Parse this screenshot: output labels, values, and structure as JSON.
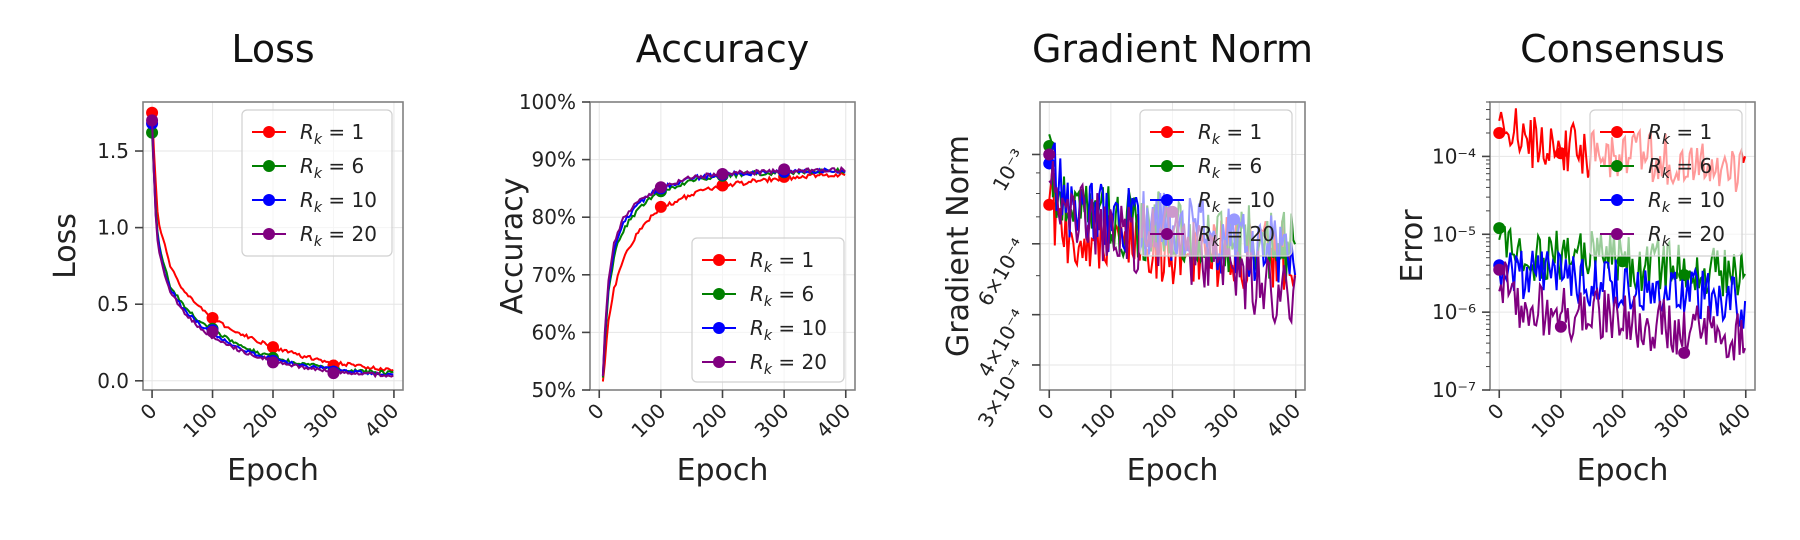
{
  "colors": {
    "r1": "#ff0000",
    "r6": "#008000",
    "r10": "#0000ff",
    "r20": "#800080"
  },
  "chart_data": [
    {
      "type": "line",
      "title": "Loss",
      "xlabel": "Epoch",
      "ylabel": "Loss",
      "xlim": [
        -15,
        415
      ],
      "ylim": [
        -0.06,
        1.82
      ],
      "xticks": [
        0,
        100,
        200,
        300,
        400
      ],
      "yticks": [
        0.0,
        0.5,
        1.0,
        1.5
      ],
      "ytick_labels": [
        "0.0",
        "0.5",
        "1.0",
        "1.5"
      ],
      "grid": true,
      "legend": "top-right",
      "series": [
        {
          "name": "R_k = 1",
          "color": "#ff0000",
          "x": [
            0,
            5,
            10,
            20,
            30,
            50,
            75,
            100,
            150,
            200,
            250,
            300,
            350,
            400
          ],
          "values": [
            1.75,
            1.35,
            1.05,
            0.9,
            0.75,
            0.6,
            0.5,
            0.4,
            0.3,
            0.22,
            0.16,
            0.12,
            0.09,
            0.07
          ],
          "marker_x": [
            0,
            100,
            200,
            300
          ],
          "marker_y": [
            1.75,
            0.41,
            0.22,
            0.1
          ]
        },
        {
          "name": "R_k = 6",
          "color": "#008000",
          "x": [
            0,
            5,
            10,
            20,
            30,
            50,
            75,
            100,
            150,
            200,
            250,
            300,
            350,
            400
          ],
          "values": [
            1.62,
            1.2,
            0.92,
            0.75,
            0.62,
            0.5,
            0.4,
            0.33,
            0.22,
            0.15,
            0.11,
            0.08,
            0.06,
            0.05
          ],
          "marker_x": [
            0,
            100,
            200,
            300
          ],
          "marker_y": [
            1.62,
            0.34,
            0.15,
            0.06
          ]
        },
        {
          "name": "R_k = 10",
          "color": "#0000ff",
          "x": [
            0,
            5,
            10,
            20,
            30,
            50,
            75,
            100,
            150,
            200,
            250,
            300,
            350,
            400
          ],
          "values": [
            1.68,
            1.15,
            0.9,
            0.72,
            0.6,
            0.48,
            0.38,
            0.3,
            0.2,
            0.14,
            0.1,
            0.07,
            0.05,
            0.04
          ],
          "marker_x": [
            0,
            100,
            200,
            300
          ],
          "marker_y": [
            1.68,
            0.33,
            0.13,
            0.06
          ]
        },
        {
          "name": "R_k = 20",
          "color": "#800080",
          "x": [
            0,
            5,
            10,
            20,
            30,
            50,
            75,
            100,
            150,
            200,
            250,
            300,
            350,
            400
          ],
          "values": [
            1.7,
            1.12,
            0.88,
            0.7,
            0.58,
            0.46,
            0.36,
            0.28,
            0.19,
            0.13,
            0.09,
            0.06,
            0.045,
            0.035
          ],
          "marker_x": [
            0,
            100,
            200,
            300
          ],
          "marker_y": [
            1.7,
            0.32,
            0.12,
            0.05
          ]
        }
      ]
    },
    {
      "type": "line",
      "title": "Accuracy",
      "xlabel": "Epoch",
      "ylabel": "Accuracy",
      "xlim": [
        -15,
        415
      ],
      "ylim": [
        0.5,
        1.0
      ],
      "xticks": [
        0,
        100,
        200,
        300,
        400
      ],
      "yticks": [
        0.5,
        0.6,
        0.7,
        0.8,
        0.9,
        1.0
      ],
      "ytick_labels": [
        "50%",
        "60%",
        "70%",
        "80%",
        "90%",
        "100%"
      ],
      "grid": true,
      "legend": "bottom-right",
      "series": [
        {
          "name": "R_k = 1",
          "color": "#ff0000",
          "x": [
            5,
            10,
            15,
            25,
            40,
            60,
            80,
            100,
            150,
            200,
            250,
            300,
            350,
            400
          ],
          "values": [
            0.5,
            0.56,
            0.62,
            0.68,
            0.73,
            0.77,
            0.795,
            0.815,
            0.84,
            0.855,
            0.862,
            0.868,
            0.872,
            0.875
          ],
          "marker_x": [
            100,
            200,
            300
          ],
          "marker_y": [
            0.818,
            0.855,
            0.87
          ]
        },
        {
          "name": "R_k = 6",
          "color": "#008000",
          "x": [
            5,
            10,
            15,
            25,
            40,
            60,
            80,
            100,
            150,
            200,
            250,
            300,
            350,
            400
          ],
          "values": [
            0.5,
            0.6,
            0.67,
            0.74,
            0.78,
            0.81,
            0.83,
            0.845,
            0.865,
            0.872,
            0.876,
            0.878,
            0.88,
            0.88
          ],
          "marker_x": [
            100,
            200,
            300
          ],
          "marker_y": [
            0.845,
            0.872,
            0.878
          ]
        },
        {
          "name": "R_k = 10",
          "color": "#0000ff",
          "x": [
            5,
            10,
            15,
            25,
            40,
            60,
            80,
            100,
            150,
            200,
            250,
            300,
            350,
            400
          ],
          "values": [
            0.5,
            0.61,
            0.68,
            0.75,
            0.79,
            0.82,
            0.838,
            0.85,
            0.868,
            0.874,
            0.877,
            0.879,
            0.88,
            0.881
          ],
          "marker_x": [
            100,
            200,
            300
          ],
          "marker_y": [
            0.85,
            0.874,
            0.879
          ]
        },
        {
          "name": "R_k = 20",
          "color": "#800080",
          "x": [
            5,
            10,
            15,
            25,
            40,
            60,
            80,
            100,
            150,
            200,
            250,
            300,
            350,
            400
          ],
          "values": [
            0.5,
            0.62,
            0.69,
            0.76,
            0.8,
            0.825,
            0.84,
            0.852,
            0.869,
            0.875,
            0.878,
            0.88,
            0.881,
            0.882
          ],
          "marker_x": [
            100,
            200,
            300
          ],
          "marker_y": [
            0.852,
            0.875,
            0.883
          ]
        }
      ]
    },
    {
      "type": "line",
      "title": "Gradient Norm",
      "xlabel": "Epoch",
      "ylabel": "Gradient Norm",
      "yscale": "log",
      "xlim": [
        -15,
        415
      ],
      "ylim": [
        0.00026,
        0.00135
      ],
      "xticks": [
        0,
        100,
        200,
        300,
        400
      ],
      "yticks": [
        0.0003,
        0.0004,
        0.0006,
        0.001
      ],
      "ytick_labels": [
        "3×10⁻⁴",
        "4×10⁻⁴",
        "6×10⁻⁴",
        "10⁻³"
      ],
      "grid": true,
      "legend": "top-right",
      "series": [
        {
          "name": "R_k = 1",
          "color": "#ff0000",
          "x": [
            0,
            5,
            10,
            20,
            40,
            60,
            80,
            100,
            150,
            200,
            250,
            300,
            350,
            400
          ],
          "values": [
            0.00075,
            0.00085,
            0.0007,
            0.00065,
            0.00064,
            0.00062,
            0.00061,
            0.0006,
            0.00059,
            0.00058,
            0.00058,
            0.00057,
            0.00057,
            0.00056
          ],
          "marker_x": [
            0
          ],
          "marker_y": [
            0.00075
          ]
        },
        {
          "name": "R_k = 6",
          "color": "#008000",
          "x": [
            0,
            5,
            10,
            20,
            40,
            60,
            80,
            100,
            150,
            200,
            250,
            300,
            350,
            400
          ],
          "values": [
            0.00105,
            0.0009,
            0.00082,
            0.00078,
            0.00074,
            0.00072,
            0.0007,
            0.00069,
            0.00067,
            0.00066,
            0.00064,
            0.00062,
            0.0006,
            0.00058
          ],
          "marker_x": [
            0,
            380
          ],
          "marker_y": [
            0.00105,
            0.00057
          ]
        },
        {
          "name": "R_k = 10",
          "color": "#0000ff",
          "x": [
            0,
            5,
            10,
            20,
            40,
            60,
            80,
            100,
            150,
            200,
            250,
            300,
            350,
            400
          ],
          "values": [
            0.00095,
            0.00125,
            0.0009,
            0.00078,
            0.00074,
            0.00073,
            0.00072,
            0.0007,
            0.00068,
            0.00066,
            0.00064,
            0.00061,
            0.00058,
            0.00055
          ],
          "marker_x": [
            0,
            300
          ],
          "marker_y": [
            0.00095,
            0.00069
          ]
        },
        {
          "name": "R_k = 20",
          "color": "#800080",
          "x": [
            0,
            5,
            10,
            20,
            40,
            60,
            80,
            100,
            150,
            200,
            250,
            300,
            350,
            400
          ],
          "values": [
            0.001,
            0.00095,
            0.00078,
            0.00072,
            0.0007,
            0.00068,
            0.00066,
            0.00064,
            0.00062,
            0.0006,
            0.00055,
            0.0005,
            0.00046,
            0.00044
          ],
          "marker_x": [
            0,
            200
          ],
          "marker_y": [
            0.001,
            0.00072
          ]
        }
      ]
    },
    {
      "type": "line",
      "title": "Consensus",
      "xlabel": "Epoch",
      "ylabel": "Error",
      "yscale": "log",
      "xlim": [
        -15,
        415
      ],
      "ylim": [
        1e-07,
        0.0005
      ],
      "xticks": [
        0,
        100,
        200,
        300,
        400
      ],
      "yticks": [
        1e-07,
        1e-06,
        1e-05,
        0.0001
      ],
      "ytick_labels": [
        "10⁻⁷",
        "10⁻⁶",
        "10⁻⁵",
        "10⁻⁴"
      ],
      "grid": true,
      "legend": "top-right",
      "series": [
        {
          "name": "R_k = 1",
          "color": "#ff0000",
          "x": [
            0,
            10,
            20,
            50,
            100,
            150,
            200,
            250,
            300,
            350,
            400
          ],
          "values": [
            0.0002,
            0.00025,
            0.0002,
            0.00016,
            0.00013,
            0.00011,
            0.0001,
            0.0001,
            9e-05,
            8e-05,
            7e-05
          ],
          "marker_x": [
            0,
            100
          ],
          "marker_y": [
            0.0002,
            0.00011
          ]
        },
        {
          "name": "R_k = 6",
          "color": "#008000",
          "x": [
            0,
            10,
            20,
            50,
            100,
            150,
            200,
            250,
            300,
            350,
            400
          ],
          "values": [
            1.2e-05,
            8e-06,
            6e-06,
            5e-06,
            5e-06,
            5e-06,
            4.5e-06,
            4e-06,
            4e-06,
            3.5e-06,
            3.5e-06
          ],
          "marker_x": [
            0,
            200,
            300
          ],
          "marker_y": [
            1.2e-05,
            4.5e-06,
            3e-06
          ]
        },
        {
          "name": "R_k = 10",
          "color": "#0000ff",
          "x": [
            0,
            10,
            20,
            50,
            100,
            150,
            200,
            250,
            300,
            350,
            400
          ],
          "values": [
            4e-06,
            3.5e-06,
            3e-06,
            3e-06,
            2.8e-06,
            2.5e-06,
            2.2e-06,
            2e-06,
            1.8e-06,
            1.5e-06,
            1.3e-06
          ],
          "marker_x": [
            0
          ],
          "marker_y": [
            4e-06
          ]
        },
        {
          "name": "R_k = 20",
          "color": "#800080",
          "x": [
            0,
            10,
            20,
            50,
            100,
            150,
            200,
            250,
            300,
            350,
            400
          ],
          "values": [
            3e-06,
            2e-06,
            1.5e-06,
            1.2e-06,
            1e-06,
            9e-07,
            8e-07,
            7e-07,
            6e-07,
            6e-07,
            5e-07
          ],
          "marker_x": [
            0,
            100,
            300
          ],
          "marker_y": [
            3.5e-06,
            6.5e-07,
            3e-07
          ]
        }
      ]
    }
  ]
}
